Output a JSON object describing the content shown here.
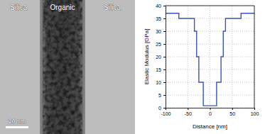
{
  "image": {
    "labels": [
      "Silica",
      "Organic",
      "Silica"
    ],
    "scale_bar": "20 nm"
  },
  "chart_data": {
    "type": "line",
    "x_label": "Distance [nm]",
    "y_label": "Elastic Modulus [GPa]",
    "x": [
      -100,
      -70,
      -35,
      -30,
      -25,
      -15,
      15,
      25,
      30,
      35,
      70,
      100
    ],
    "series": [
      {
        "color": "#3a56b8",
        "line_style": "step",
        "values": [
          37,
          35,
          30,
          20,
          10,
          0.8,
          10,
          20,
          30,
          35,
          37,
          37
        ]
      }
    ],
    "xlim": [
      -100,
      100
    ],
    "xticks": [
      -100,
      -50,
      0,
      50,
      100
    ],
    "ylim": [
      0,
      40
    ],
    "yticks": [
      0,
      5,
      10,
      15,
      20,
      25,
      30,
      35,
      40
    ],
    "grid": true
  }
}
